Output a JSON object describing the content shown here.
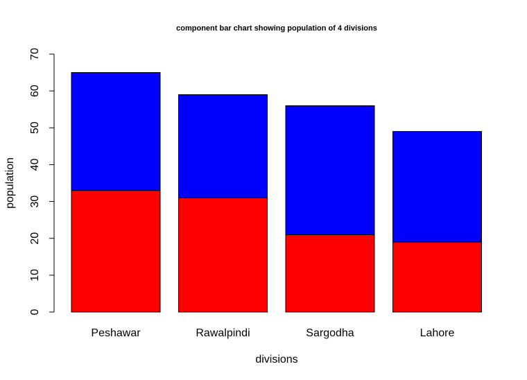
{
  "chart_data": {
    "type": "bar",
    "stacked": true,
    "title": "component bar chart showing population of 4 divisions",
    "xlabel": "divisions",
    "ylabel": "population",
    "categories": [
      "Peshawar",
      "Rawalpindi",
      "Sargodha",
      "Lahore"
    ],
    "series": [
      {
        "values": [
          33,
          31,
          21,
          19
        ],
        "color": "#ff0000"
      },
      {
        "values": [
          32,
          28,
          35,
          30
        ],
        "color": "#0000ff"
      }
    ],
    "ylim": [
      0,
      70
    ],
    "yticks": [
      "0",
      "10",
      "20",
      "30",
      "40",
      "50",
      "60",
      "70"
    ],
    "grid": false,
    "legend": "none"
  }
}
